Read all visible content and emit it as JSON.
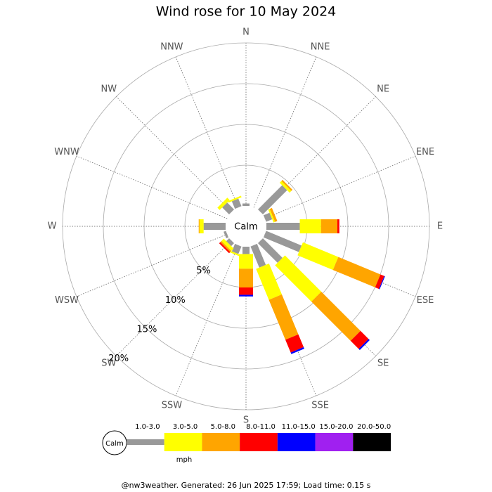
{
  "chart_data": {
    "type": "windrose",
    "title": "Wind rose for 10 May 2024",
    "calm_label": "Calm",
    "unit": "mph",
    "footer": "@nw3weather.  Generated: 26 Jun 2025 17:59; Load time: 0.15 s",
    "directions": [
      "N",
      "NNE",
      "NE",
      "ENE",
      "E",
      "ESE",
      "SE",
      "SSE",
      "S",
      "SSW",
      "SW",
      "WSW",
      "W",
      "WNW",
      "NW",
      "NNW"
    ],
    "rlim": [
      0,
      20
    ],
    "rticks": [
      {
        "value": 5,
        "label": "5%"
      },
      {
        "value": 10,
        "label": "10%"
      },
      {
        "value": 15,
        "label": "15%"
      },
      {
        "value": 20,
        "label": "20%"
      }
    ],
    "series": [
      {
        "name": "1.0-3.0",
        "color": "#999999",
        "values": [
          0.3,
          0,
          4.2,
          0.8,
          4.1,
          4.7,
          3.4,
          2.8,
          0.9,
          1.0,
          0.5,
          0.3,
          2.7,
          0,
          1.2,
          1.0
        ]
      },
      {
        "name": "3.0-5.0",
        "color": "#ffff00",
        "values": [
          0,
          0,
          0.3,
          0.2,
          2.6,
          4.7,
          6.3,
          4.1,
          1.8,
          0.2,
          0.4,
          0,
          0.5,
          0,
          0.4,
          0.2
        ]
      },
      {
        "name": "5.0-8.0",
        "color": "#ffa500",
        "values": [
          0,
          0,
          0.2,
          0.3,
          2.0,
          5.6,
          6.8,
          5.3,
          2.3,
          0,
          0.2,
          0,
          0.1,
          0,
          0,
          0
        ]
      },
      {
        "name": "8.0-11.0",
        "color": "#ff0000",
        "values": [
          0,
          0,
          0,
          0,
          0.25,
          0.5,
          1.4,
          1.7,
          0.9,
          0,
          0.2,
          0,
          0,
          0,
          0,
          0
        ]
      },
      {
        "name": "11.0-15.0",
        "color": "#0000ff",
        "values": [
          0,
          0,
          0,
          0,
          0,
          0.1,
          0.2,
          0.2,
          0.2,
          0,
          0,
          0,
          0,
          0,
          0,
          0
        ]
      },
      {
        "name": "15.0-20.0",
        "color": "#a020f0",
        "values": [
          0,
          0,
          0,
          0,
          0,
          0,
          0,
          0,
          0,
          0,
          0,
          0,
          0,
          0,
          0,
          0
        ]
      },
      {
        "name": "20.0-50.0",
        "color": "#000000",
        "values": [
          0,
          0,
          0,
          0,
          0,
          0,
          0,
          0,
          0,
          0,
          0,
          0,
          0,
          0,
          0,
          0
        ]
      }
    ]
  }
}
